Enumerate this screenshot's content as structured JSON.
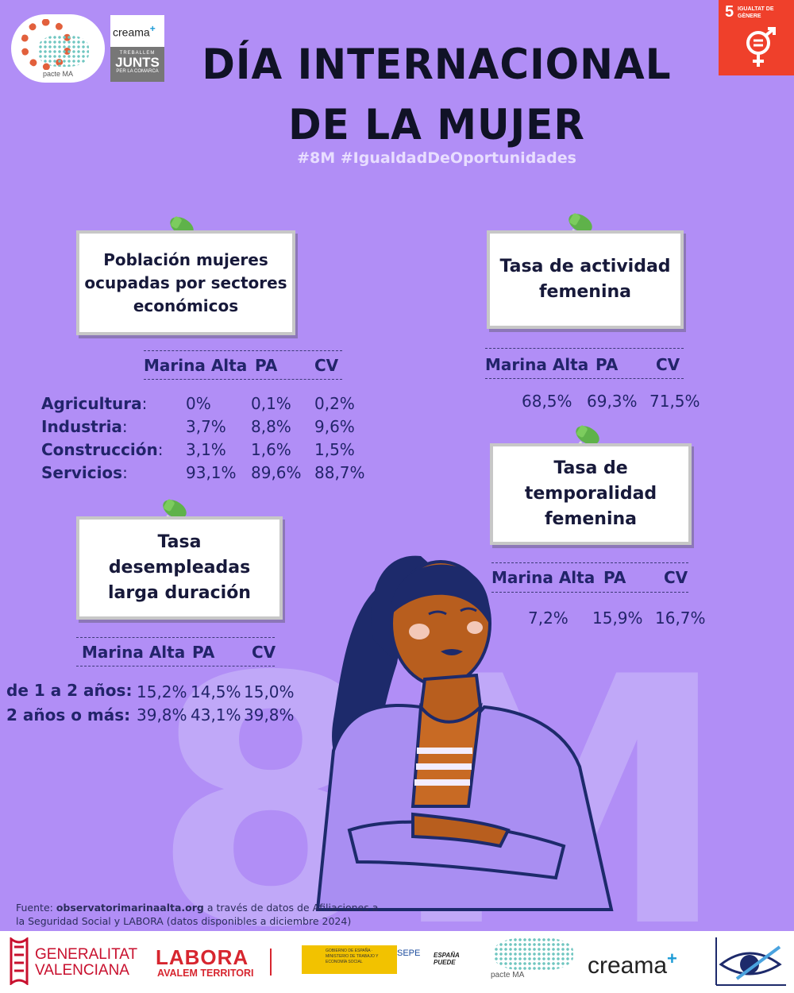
{
  "header": {
    "title_line1": "DÍA INTERNACIONAL",
    "title_line2": "DE LA MUJER",
    "hashtags": "#8M #IgualdadDeOportunidades"
  },
  "logos": {
    "pacte": "pacte MA",
    "creama": "creama",
    "creama_plus": "+",
    "junts_top": "TREBALLEM",
    "junts_main": "JUNTS",
    "junts_bottom": "PER LA COMARCA",
    "sdg_number": "5",
    "sdg_label": "IGUALTAT DE GÈNERE"
  },
  "background_text": "8M",
  "sectors": {
    "card_title": "Población mujeres ocupadas por sectores económicos",
    "columns": [
      "Marina Alta",
      "PA",
      "CV"
    ],
    "rows": [
      {
        "label": "Agricultura",
        "values": [
          "0%",
          "0,1%",
          "0,2%"
        ]
      },
      {
        "label": "Industria",
        "values": [
          "3,7%",
          "8,8%",
          "9,6%"
        ]
      },
      {
        "label": "Construcción",
        "values": [
          "3,1%",
          "1,6%",
          "1,5%"
        ]
      },
      {
        "label": "Servicios",
        "values": [
          "93,1%",
          "89,6%",
          "88,7%"
        ]
      }
    ]
  },
  "activity": {
    "card_title": "Tasa de actividad femenina",
    "columns": [
      "Marina Alta",
      "PA",
      "CV"
    ],
    "values": [
      "68,5%",
      "69,3%",
      "71,5%"
    ]
  },
  "temporality": {
    "card_title": "Tasa de temporalidad femenina",
    "columns": [
      "Marina Alta",
      "PA",
      "CV"
    ],
    "values": [
      "7,2%",
      "15,9%",
      "16,7%"
    ]
  },
  "unemployment": {
    "card_title": "Tasa desempleadas larga duración",
    "columns": [
      "Marina Alta",
      "PA",
      "CV"
    ],
    "rows": [
      {
        "label": "de 1 a 2 años:",
        "values": [
          "15,2%",
          "14,5%",
          "15,0%"
        ]
      },
      {
        "label": "2 años o más:",
        "values": [
          "39,8%",
          "43,1%",
          "39,8%"
        ]
      }
    ]
  },
  "source": {
    "prefix": "Fuente: ",
    "site": "observatorimarinaalta.org",
    "rest": " a través de datos de Afiliaciones a la Seguridad Social y LABORA (datos disponibles a diciembre 2024)"
  },
  "footer": {
    "gv_line1": "GENERALITAT",
    "gv_line2": "VALENCIANA",
    "labora": "LABORA",
    "labora_sub": "AVALEM TERRITORI",
    "ministerio": "GOBIERNO DE ESPAÑA · MINISTERIO DE TRABAJO Y ECONOMÍA SOCIAL",
    "sepe": "SEPE",
    "espana_puede": "ESPAÑA PUEDE",
    "pacte": "pacte MA",
    "creama": "creama",
    "creama_plus": "+"
  },
  "colors": {
    "background": "#b18ef6",
    "title": "#101226",
    "text": "#22246a",
    "sdg": "#ef402b",
    "pin": "#5fb24a",
    "labora": "#d7262f",
    "gv": "#c8102e"
  },
  "icons": [
    "pushpin-icon",
    "gender-equality-icon",
    "eye-icon"
  ]
}
